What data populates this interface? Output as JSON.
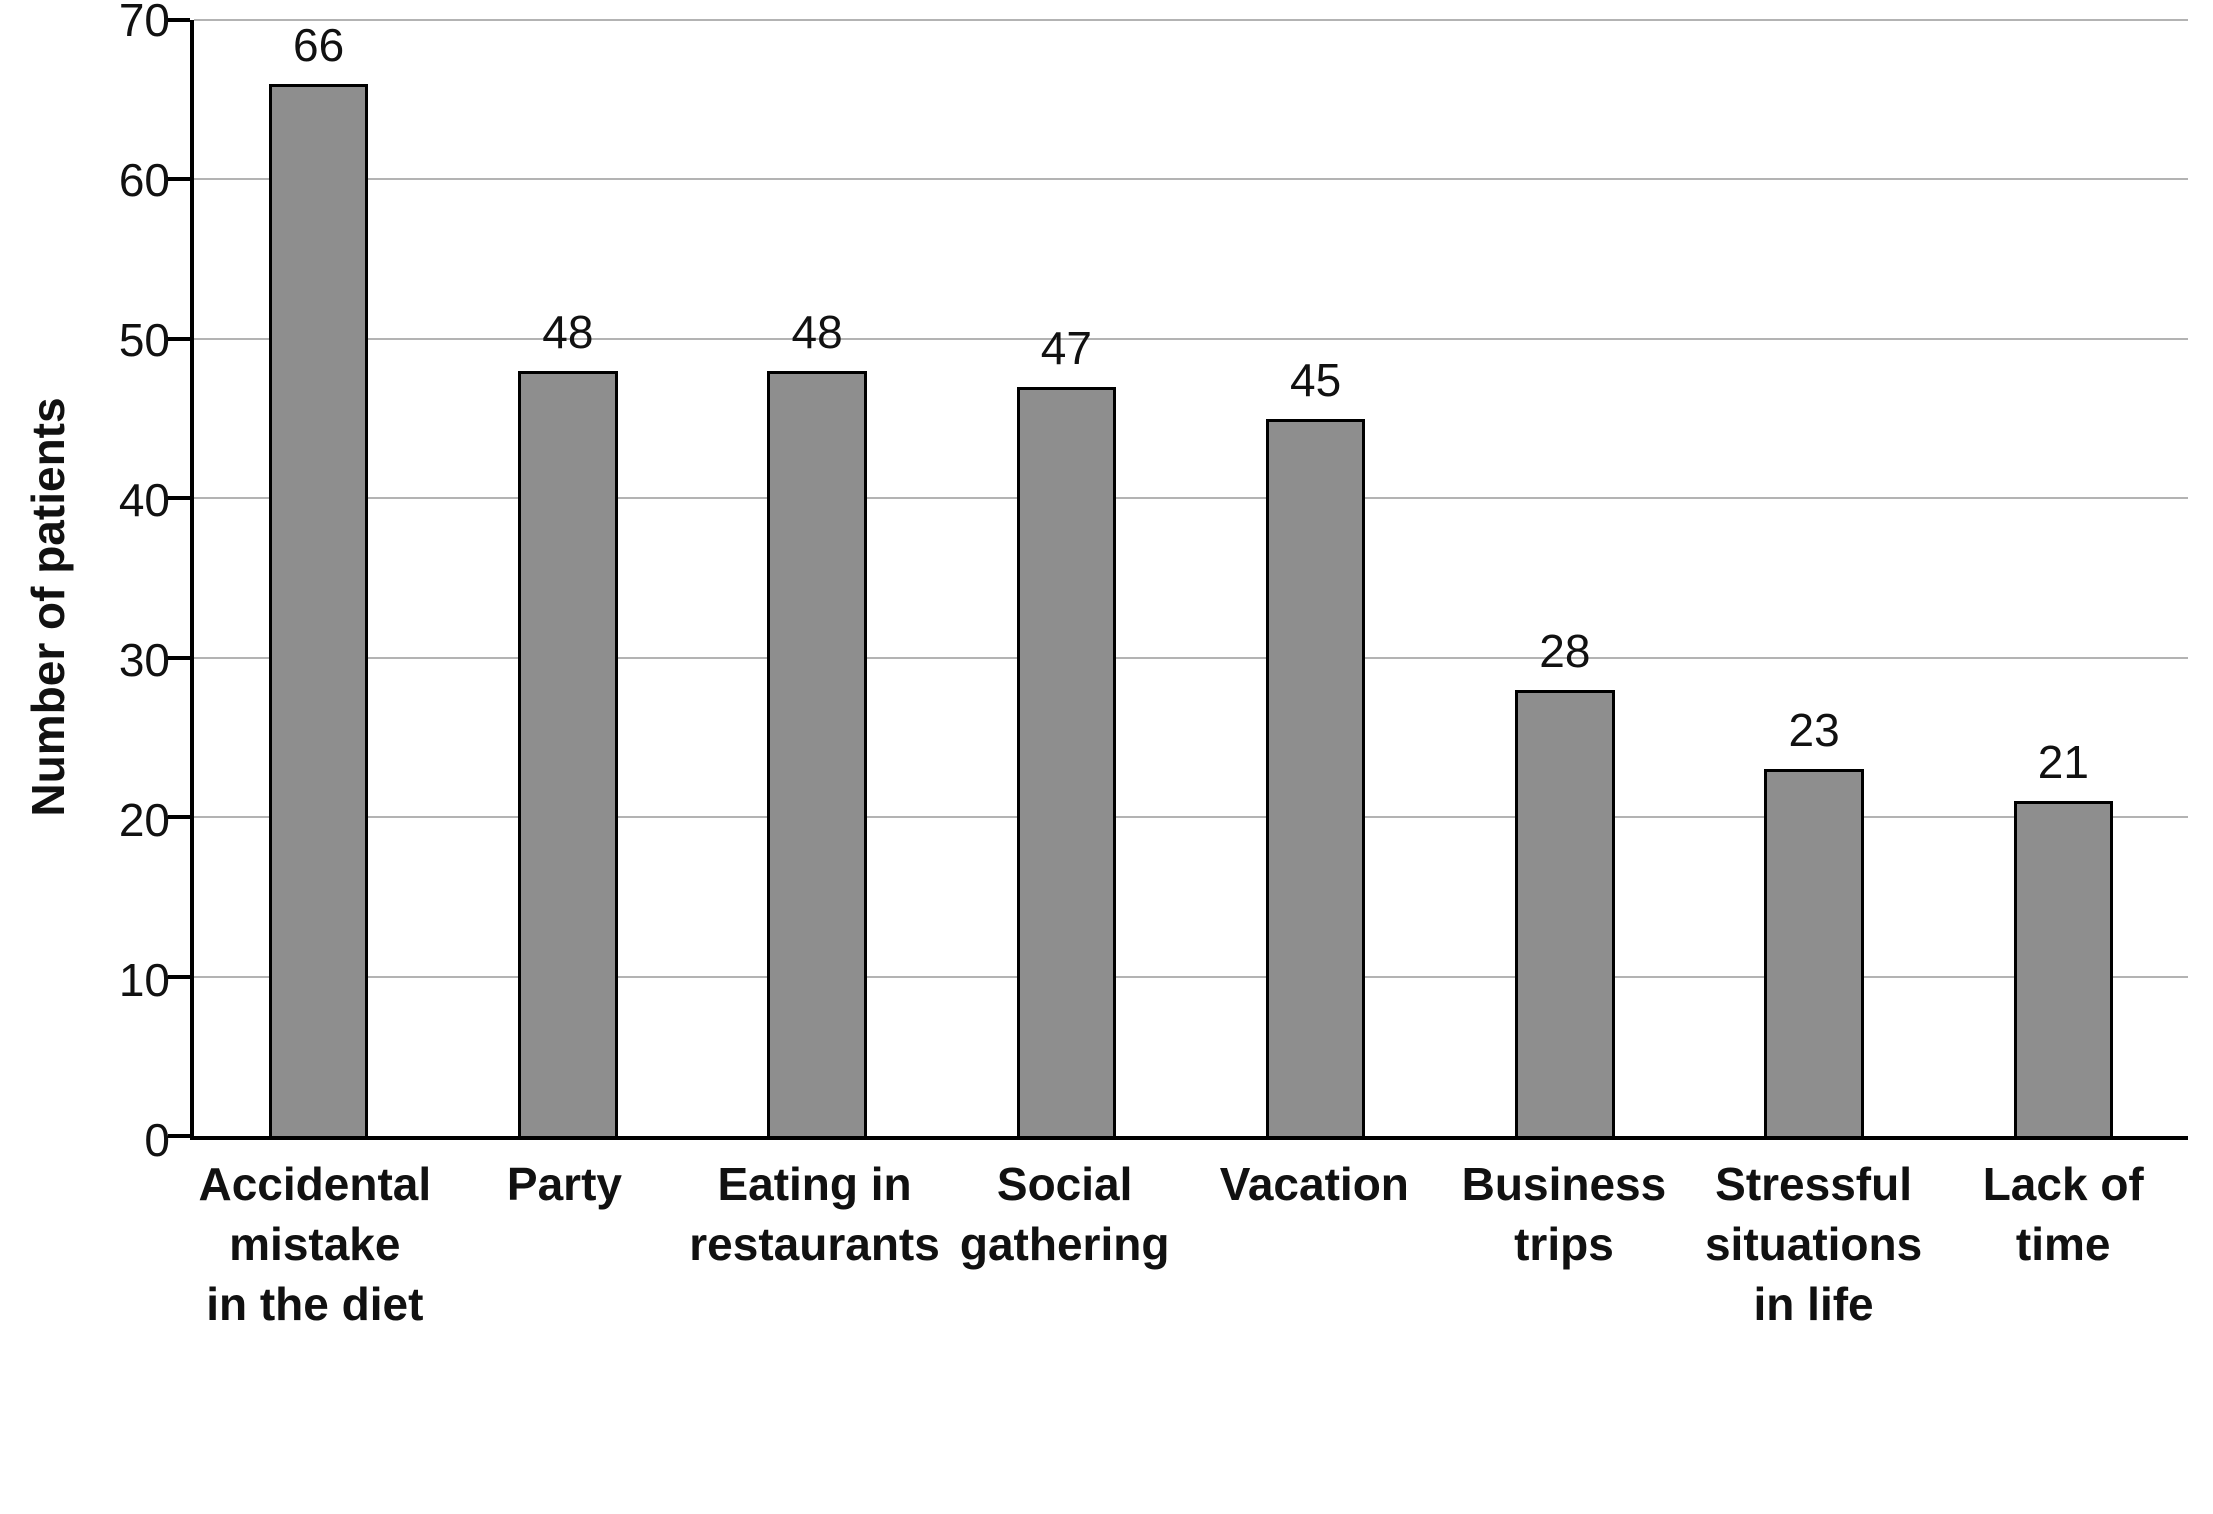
{
  "chart_data": {
    "type": "bar",
    "title": "",
    "xlabel": "",
    "ylabel": "Number of patients",
    "ylim": [
      0,
      70
    ],
    "yticks": [
      0,
      10,
      20,
      30,
      40,
      50,
      60,
      70
    ],
    "grid": true,
    "legend": false,
    "bar_color": "#8e8e8e",
    "bar_border_color": "#000000",
    "categories": [
      "Accidental mistake in the diet",
      "Party",
      "Eating in restaurants",
      "Social gathering",
      "Vacation",
      "Business trips",
      "Stressful situations in life",
      "Lack of time"
    ],
    "category_lines": [
      [
        "Accidental",
        "mistake",
        "in the diet"
      ],
      [
        "Party"
      ],
      [
        "Eating in",
        "restaurants"
      ],
      [
        "Social",
        "gathering"
      ],
      [
        "Vacation"
      ],
      [
        "Business",
        "trips"
      ],
      [
        "Stressful",
        "situations",
        "in life"
      ],
      [
        "Lack of",
        "time"
      ]
    ],
    "values": [
      66,
      48,
      48,
      47,
      45,
      28,
      23,
      21
    ]
  }
}
